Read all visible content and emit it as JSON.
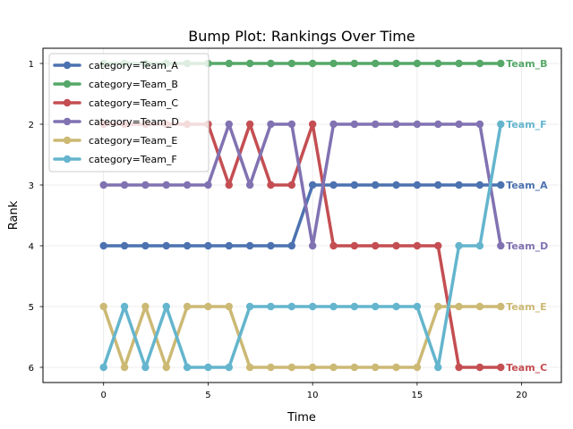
{
  "chart_data": {
    "type": "line",
    "title": "Bump Plot: Rankings Over Time",
    "xlabel": "Time",
    "ylabel": "Rank",
    "xlim": [
      -2.9,
      21.9
    ],
    "ylim": [
      6.25,
      0.75
    ],
    "x_ticks": [
      0,
      5,
      10,
      15,
      20
    ],
    "y_ticks": [
      1,
      2,
      3,
      4,
      5,
      6
    ],
    "grid": true,
    "legend_position": "top-left",
    "x": [
      0,
      1,
      2,
      3,
      4,
      5,
      6,
      7,
      8,
      9,
      10,
      11,
      12,
      13,
      14,
      15,
      16,
      17,
      18,
      19
    ],
    "series": [
      {
        "name": "category=Team_A",
        "end_label": "Team_A",
        "color": "#4c72b0",
        "values": [
          4,
          4,
          4,
          4,
          4,
          4,
          4,
          4,
          4,
          4,
          3,
          3,
          3,
          3,
          3,
          3,
          3,
          3,
          3,
          3
        ]
      },
      {
        "name": "category=Team_B",
        "end_label": "Team_B",
        "color": "#55a868",
        "values": [
          1,
          1,
          1,
          1,
          1,
          1,
          1,
          1,
          1,
          1,
          1,
          1,
          1,
          1,
          1,
          1,
          1,
          1,
          1,
          1
        ]
      },
      {
        "name": "category=Team_C",
        "end_label": "Team_C",
        "color": "#c44e52",
        "values": [
          2,
          2,
          2,
          2,
          2,
          2,
          3,
          2,
          3,
          3,
          2,
          4,
          4,
          4,
          4,
          4,
          4,
          6,
          6,
          6
        ]
      },
      {
        "name": "category=Team_D",
        "end_label": "Team_D",
        "color": "#8172b2",
        "values": [
          3,
          3,
          3,
          3,
          3,
          3,
          2,
          3,
          2,
          2,
          4,
          2,
          2,
          2,
          2,
          2,
          2,
          2,
          2,
          4
        ]
      },
      {
        "name": "category=Team_E",
        "end_label": "Team_E",
        "color": "#ccb974",
        "values": [
          5,
          6,
          5,
          6,
          5,
          5,
          5,
          6,
          6,
          6,
          6,
          6,
          6,
          6,
          6,
          6,
          5,
          5,
          5,
          5
        ]
      },
      {
        "name": "category=Team_F",
        "end_label": "Team_F",
        "color": "#64b5cd",
        "values": [
          6,
          5,
          6,
          5,
          6,
          6,
          6,
          5,
          5,
          5,
          5,
          5,
          5,
          5,
          5,
          5,
          6,
          4,
          4,
          2
        ]
      }
    ]
  }
}
